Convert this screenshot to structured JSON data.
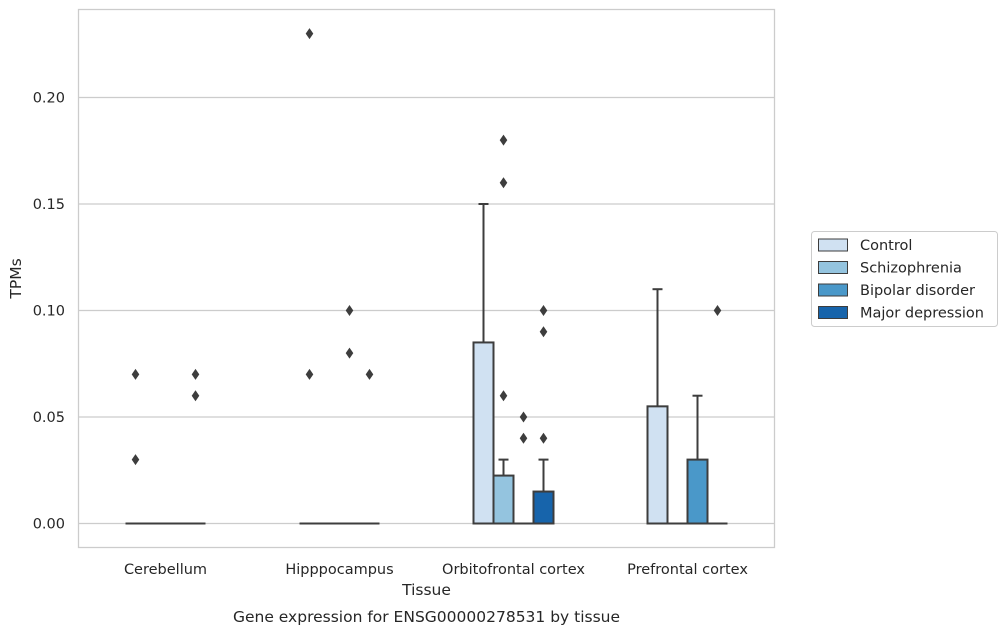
{
  "chart_data": {
    "type": "box",
    "title": "Gene expression for ENSG00000278531 by tissue",
    "xlabel": "Tissue",
    "ylabel": "TPMs",
    "ylim": [
      -0.011,
      0.24
    ],
    "yticks": [
      "0.00",
      "0.05",
      "0.10",
      "0.15",
      "0.20"
    ],
    "grid": "horizontal",
    "legend_position": "right",
    "categories": [
      "Cerebellum",
      "Hipppocampus",
      "Orbitofrontal cortex",
      "Prefrontal cortex"
    ],
    "series": [
      {
        "name": "Control",
        "color": "#d0e1f2",
        "boxes": [
          {
            "q1": 0,
            "median": 0,
            "q3": 0,
            "whisker_low": 0,
            "whisker_high": 0,
            "outliers": [
              0.07,
              0.03
            ]
          },
          {
            "q1": 0,
            "median": 0,
            "q3": 0,
            "whisker_low": 0,
            "whisker_high": 0,
            "outliers": [
              0.23,
              0.07
            ]
          },
          {
            "q1": 0,
            "median": 0,
            "q3": 0.085,
            "whisker_low": 0,
            "whisker_high": 0.15,
            "outliers": []
          },
          {
            "q1": 0,
            "median": 0,
            "q3": 0.055,
            "whisker_low": 0,
            "whisker_high": 0.11,
            "outliers": []
          }
        ]
      },
      {
        "name": "Schizophrenia",
        "color": "#94c4df",
        "boxes": [
          {
            "q1": 0,
            "median": 0,
            "q3": 0,
            "whisker_low": 0,
            "whisker_high": 0,
            "outliers": []
          },
          {
            "q1": 0,
            "median": 0,
            "q3": 0,
            "whisker_low": 0,
            "whisker_high": 0,
            "outliers": []
          },
          {
            "q1": 0,
            "median": 0,
            "q3": 0.0225,
            "whisker_low": 0,
            "whisker_high": 0.03,
            "outliers": [
              0.18,
              0.16,
              0.06
            ]
          },
          {
            "q1": 0,
            "median": 0,
            "q3": 0,
            "whisker_low": 0,
            "whisker_high": 0,
            "outliers": []
          }
        ]
      },
      {
        "name": "Bipolar disorder",
        "color": "#4a98c9",
        "boxes": [
          {
            "q1": 0,
            "median": 0,
            "q3": 0,
            "whisker_low": 0,
            "whisker_high": 0,
            "outliers": []
          },
          {
            "q1": 0,
            "median": 0,
            "q3": 0,
            "whisker_low": 0,
            "whisker_high": 0,
            "outliers": [
              0.1,
              0.08
            ]
          },
          {
            "q1": 0,
            "median": 0,
            "q3": 0,
            "whisker_low": 0,
            "whisker_high": 0,
            "outliers": [
              0.05,
              0.04
            ]
          },
          {
            "q1": 0,
            "median": 0,
            "q3": 0.03,
            "whisker_low": 0,
            "whisker_high": 0.06,
            "outliers": []
          }
        ]
      },
      {
        "name": "Major depression",
        "color": "#1764ab",
        "boxes": [
          {
            "q1": 0,
            "median": 0,
            "q3": 0,
            "whisker_low": 0,
            "whisker_high": 0,
            "outliers": [
              0.07,
              0.06
            ]
          },
          {
            "q1": 0,
            "median": 0,
            "q3": 0,
            "whisker_low": 0,
            "whisker_high": 0,
            "outliers": [
              0.07
            ]
          },
          {
            "q1": 0,
            "median": 0,
            "q3": 0.015,
            "whisker_low": 0,
            "whisker_high": 0.03,
            "outliers": [
              0.1,
              0.09,
              0.04
            ]
          },
          {
            "q1": 0,
            "median": 0,
            "q3": 0,
            "whisker_low": 0,
            "whisker_high": 0,
            "outliers": [
              0.1
            ]
          }
        ]
      }
    ]
  }
}
